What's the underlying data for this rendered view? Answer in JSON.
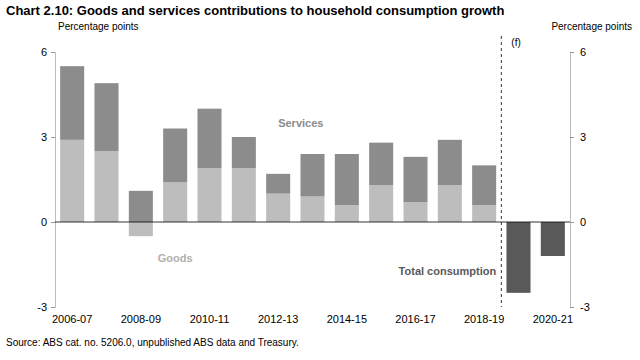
{
  "chart_data": {
    "type": "bar",
    "stacked": true,
    "title": "Chart 2.10: Goods and services contributions to household consumption growth",
    "y_label": "Percentage points",
    "y2_label": "Percentage points",
    "annotation": "(f)",
    "source": "Source: ABS cat. no. 5206.0, unpublished ABS data and Treasury.",
    "categories": [
      "2006-07",
      null,
      "2008-09",
      null,
      "2010-11",
      null,
      "2012-13",
      null,
      "2014-15",
      null,
      "2016-17",
      null,
      "2018-19",
      null,
      "2020-21"
    ],
    "series": [
      {
        "name": "Goods",
        "color": "#bdbdbd",
        "values": [
          2.9,
          2.5,
          -0.5,
          1.4,
          1.9,
          1.9,
          1.0,
          0.9,
          0.6,
          1.3,
          0.7,
          1.3,
          0.6,
          null,
          null
        ]
      },
      {
        "name": "Services",
        "color": "#8c8c8c",
        "values": [
          2.6,
          2.4,
          1.1,
          1.9,
          2.1,
          1.1,
          0.7,
          1.5,
          1.8,
          1.5,
          1.6,
          1.6,
          1.4,
          null,
          null
        ]
      },
      {
        "name": "Total consumption",
        "color": "#595959",
        "values": [
          null,
          null,
          null,
          null,
          null,
          null,
          null,
          null,
          null,
          null,
          null,
          null,
          null,
          -2.5,
          -1.2
        ]
      }
    ],
    "ylim": [
      -3,
      6
    ],
    "yticks": [
      -3,
      0,
      3,
      6
    ],
    "y2lim": [
      -3,
      6
    ],
    "y2ticks": [
      -3,
      0,
      3,
      6
    ],
    "grid": false
  }
}
